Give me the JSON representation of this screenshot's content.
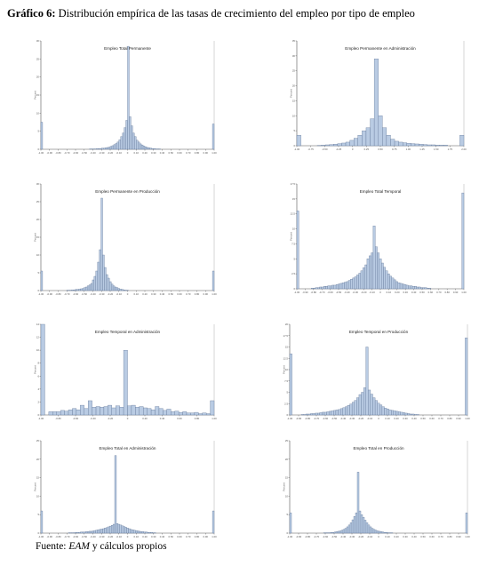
{
  "title": {
    "label": "Gráfico 6:",
    "text": "Distribución empírica de las tasas de crecimiento del empleo por tipo de empleo"
  },
  "source": {
    "prefix": "Fuente:",
    "italic": "EAM",
    "suffix": "y cálculos propios"
  },
  "colors": {
    "bar_fill": "#b9cbe3",
    "bar_stroke": "#5d7294",
    "axis": "#555555"
  },
  "chart_data": [
    {
      "type": "bar",
      "title": "Empleo Total Permanente",
      "ylabel": "Percent",
      "xlim": [
        -1,
        1
      ],
      "ylim": [
        0,
        30
      ],
      "yticks": [
        0,
        5,
        10,
        15,
        20,
        25,
        30
      ],
      "xticks": [
        "-1.00",
        "-0.90",
        "-0.80",
        "-0.70",
        "-0.60",
        "-0.50",
        "-0.40",
        "-0.30",
        "-0.20",
        "-0.10",
        "0",
        "0.10",
        "0.20",
        "0.30",
        "0.40",
        "0.50",
        "0.60",
        "0.70",
        "0.80",
        "0.90",
        "1.00"
      ],
      "values": [
        7.5,
        0,
        0,
        0,
        0,
        0,
        0,
        0,
        0,
        0,
        0,
        0,
        0,
        0,
        0,
        0,
        0,
        0,
        0,
        0,
        0,
        0,
        0,
        0,
        0,
        0,
        0,
        0,
        0.1,
        0.1,
        0.1,
        0.1,
        0.2,
        0.2,
        0.2,
        0.3,
        0.3,
        0.4,
        0.5,
        0.6,
        0.8,
        1,
        1.3,
        1.6,
        2,
        2.6,
        3.5,
        4.5,
        6,
        8,
        28.5,
        9,
        6.5,
        4.5,
        3.5,
        2.5,
        2,
        1.5,
        1.2,
        0.9,
        0.7,
        0.5,
        0.4,
        0.3,
        0.2,
        0.2,
        0.1,
        0.1,
        0.1,
        0,
        0,
        0,
        0,
        0,
        0,
        0,
        0,
        0,
        0,
        0,
        0,
        0,
        0,
        0,
        0,
        0,
        0,
        0,
        0,
        0,
        0,
        0,
        0,
        0,
        0,
        0,
        0,
        0,
        0,
        7
      ]
    },
    {
      "type": "bar",
      "title": "Empleo Permanente en Administración",
      "ylabel": "Percent",
      "xlim": [
        -1,
        1
      ],
      "ylim": [
        0,
        35
      ],
      "yticks": [
        0,
        5,
        10,
        15,
        20,
        25,
        30,
        35
      ],
      "xticks": [
        "-1.00",
        "-0.75",
        "-0.50",
        "-0.25",
        "0",
        "0.25",
        "0.50",
        "0.75",
        "1.00",
        "1.25",
        "1.50",
        "1.75",
        "2.00"
      ],
      "values": [
        3.5,
        0,
        0,
        0,
        0,
        0.1,
        0.2,
        0.3,
        0.4,
        0.5,
        0.7,
        0.9,
        1.2,
        1.8,
        2.5,
        3.5,
        5,
        6,
        9,
        29,
        10,
        6,
        3.5,
        2.2,
        1.5,
        1.2,
        1,
        0.8,
        0.7,
        0.6,
        0.5,
        0.4,
        0.3,
        0.3,
        0.2,
        0.2,
        0.2,
        0,
        0,
        0,
        3.5
      ]
    },
    {
      "type": "bar",
      "title": "Empleo Permanente en Producción",
      "ylabel": "Percent",
      "xlim": [
        -1,
        1
      ],
      "ylim": [
        0,
        30
      ],
      "yticks": [
        0,
        5,
        10,
        15,
        20,
        25,
        30
      ],
      "xticks": [
        "-1.00",
        "-0.90",
        "-0.80",
        "-0.70",
        "-0.60",
        "-0.50",
        "-0.40",
        "-0.30",
        "-0.20",
        "-0.10",
        "0",
        "0.10",
        "0.20",
        "0.30",
        "0.40",
        "0.50",
        "0.60",
        "0.70",
        "0.80",
        "0.90",
        "1.00"
      ],
      "values": [
        5.5,
        0,
        0,
        0,
        0,
        0,
        0,
        0,
        0,
        0,
        0,
        0,
        0,
        0,
        0,
        0.1,
        0.1,
        0.1,
        0.2,
        0.2,
        0.3,
        0.3,
        0.4,
        0.5,
        0.6,
        0.8,
        1,
        1.3,
        1.6,
        2,
        3,
        4,
        5.5,
        8,
        11.5,
        26,
        10,
        6.5,
        4.5,
        3.5,
        2.5,
        1.8,
        1.3,
        1,
        0.8,
        0.6,
        0.4,
        0.3,
        0.2,
        0.1,
        0.1,
        0,
        0,
        0,
        0,
        0,
        0,
        0,
        0,
        0,
        0,
        0,
        0,
        0,
        0,
        0,
        0,
        0,
        0,
        0,
        0,
        0,
        0,
        0,
        0,
        0,
        0,
        0,
        0,
        0,
        0,
        0,
        0,
        0,
        0,
        0,
        0,
        0,
        0,
        0,
        0,
        0,
        0,
        0,
        0,
        0,
        0,
        0,
        0,
        0,
        5.5
      ]
    },
    {
      "type": "bar",
      "title": "Empleo Total Temporal",
      "ylabel": "Percent",
      "xlim": [
        -1,
        1
      ],
      "ylim": [
        0,
        17.5
      ],
      "yticks": [
        0,
        2.5,
        5,
        7.5,
        10,
        12.5,
        15,
        17.5
      ],
      "xticks": [
        "-1.00",
        "-0.90",
        "-0.80",
        "-0.70",
        "-0.60",
        "-0.50",
        "-0.40",
        "-0.30",
        "-0.20",
        "-0.10",
        "0",
        "0.10",
        "0.20",
        "0.30",
        "0.40",
        "0.50",
        "0.60",
        "0.70",
        "0.80",
        "0.90",
        "1.00"
      ],
      "values": [
        13,
        0,
        0,
        0,
        0,
        0,
        0,
        0.1,
        0.1,
        0.2,
        0.2,
        0.3,
        0.3,
        0.4,
        0.4,
        0.5,
        0.5,
        0.6,
        0.6,
        0.7,
        0.8,
        0.9,
        1,
        1.1,
        1.2,
        1.4,
        1.6,
        1.8,
        2,
        2.3,
        2.6,
        3,
        3.5,
        4,
        5,
        5.5,
        6,
        10.5,
        7,
        6,
        5,
        4.3,
        3.6,
        3,
        2.5,
        2.1,
        1.8,
        1.5,
        1.2,
        1,
        0.9,
        0.8,
        0.7,
        0.6,
        0.5,
        0.5,
        0.4,
        0.4,
        0.3,
        0.3,
        0.2,
        0.2,
        0.2,
        0.1,
        0.1,
        0,
        0,
        0,
        0,
        0,
        0,
        0,
        0,
        0,
        0,
        0,
        0,
        0,
        0,
        0,
        16
      ]
    },
    {
      "type": "bar",
      "title": "Empleo Temporal en Administración",
      "ylabel": "Percent",
      "xlim": [
        -1,
        1
      ],
      "ylim": [
        0,
        14
      ],
      "yticks": [
        0,
        2,
        4,
        6,
        8,
        10,
        12,
        14
      ],
      "xticks": [
        "-1.00",
        "-0.80",
        "-0.60",
        "-0.40",
        "-0.20",
        "0",
        "0.20",
        "0.40",
        "0.60",
        "0.80",
        "1.00"
      ],
      "values": [
        14,
        0,
        0.5,
        0.5,
        0.5,
        0.7,
        0.6,
        0.8,
        1,
        0.8,
        1.5,
        1,
        2.2,
        1.2,
        1.3,
        1.2,
        1.3,
        1.5,
        1.1,
        1.4,
        1.2,
        10,
        1.4,
        1.5,
        1.2,
        1.3,
        1.1,
        1,
        0.8,
        1.3,
        1,
        0.7,
        0.9,
        0.5,
        0.6,
        0.4,
        0.5,
        0.3,
        0.3,
        0.4,
        0.2,
        0.3,
        0.2,
        2.2
      ]
    },
    {
      "type": "bar",
      "title": "Empleo Temporal en Producción",
      "ylabel": "Percent",
      "xlim": [
        -1,
        1
      ],
      "ylim": [
        0,
        20
      ],
      "yticks": [
        0,
        2.5,
        5,
        7.5,
        10,
        12.5,
        15,
        17.5,
        20
      ],
      "xticks": [
        "-1.00",
        "-0.90",
        "-0.80",
        "-0.70",
        "-0.60",
        "-0.50",
        "-0.40",
        "-0.30",
        "-0.20",
        "-0.10",
        "0",
        "0.10",
        "0.20",
        "0.30",
        "0.40",
        "0.50",
        "0.60",
        "0.70",
        "0.80",
        "0.90",
        "1.00"
      ],
      "values": [
        13.5,
        0,
        0,
        0,
        0,
        0.1,
        0.1,
        0.2,
        0.2,
        0.3,
        0.3,
        0.4,
        0.4,
        0.5,
        0.6,
        0.6,
        0.7,
        0.8,
        0.9,
        1,
        1.1,
        1.2,
        1.4,
        1.6,
        1.8,
        2.1,
        2.4,
        2.8,
        3.2,
        3.8,
        4.5,
        5,
        6,
        15,
        5.5,
        4.6,
        3.8,
        3.2,
        2.6,
        2.2,
        1.8,
        1.5,
        1.3,
        1.1,
        1,
        0.9,
        0.8,
        0.7,
        0.6,
        0.5,
        0.4,
        0.3,
        0.2,
        0.2,
        0.1,
        0.1,
        0,
        0,
        0,
        0,
        0,
        0,
        0,
        0,
        0,
        0,
        0,
        0,
        0,
        0,
        0,
        0,
        0,
        0,
        0,
        0,
        17
      ]
    },
    {
      "type": "bar",
      "title": "Empleo Total en Administración",
      "ylabel": "Percent",
      "xlim": [
        -1,
        1
      ],
      "ylim": [
        0,
        25
      ],
      "yticks": [
        0,
        5,
        10,
        15,
        20,
        25
      ],
      "xticks": [
        "-1.00",
        "-0.90",
        "-0.80",
        "-0.70",
        "-0.60",
        "-0.50",
        "-0.40",
        "-0.30",
        "-0.20",
        "-0.10",
        "0",
        "0.10",
        "0.20",
        "0.30",
        "0.40",
        "0.50",
        "0.60",
        "0.70",
        "0.80",
        "0.90",
        "1.00"
      ],
      "values": [
        6,
        0,
        0,
        0,
        0,
        0,
        0,
        0,
        0,
        0,
        0,
        0,
        0,
        0,
        0,
        0,
        0.1,
        0.1,
        0.1,
        0.1,
        0.2,
        0.2,
        0.2,
        0.3,
        0.3,
        0.3,
        0.4,
        0.4,
        0.5,
        0.5,
        0.6,
        0.7,
        0.8,
        0.9,
        1,
        1.1,
        1.2,
        1.4,
        1.5,
        1.7,
        1.9,
        2.1,
        2.4,
        21,
        2.6,
        2.4,
        2.2,
        2,
        1.8,
        1.6,
        1.4,
        1.2,
        1,
        0.9,
        0.8,
        0.7,
        0.6,
        0.5,
        0.4,
        0.4,
        0.3,
        0.3,
        0.2,
        0.2,
        0.2,
        0.1,
        0.1,
        0,
        0,
        0,
        0,
        0,
        0,
        0,
        0,
        0,
        0,
        0,
        0,
        0,
        0,
        0,
        0,
        0,
        0,
        0,
        0,
        0,
        0,
        0,
        0,
        0,
        0,
        0,
        0,
        0,
        0,
        0,
        0,
        0,
        6
      ]
    },
    {
      "type": "bar",
      "title": "Empleo Total en Producción",
      "ylabel": "Percent",
      "xlim": [
        -1,
        1
      ],
      "ylim": [
        0,
        25
      ],
      "yticks": [
        0,
        5,
        10,
        15,
        20,
        25
      ],
      "xticks": [
        "-1.00",
        "-0.90",
        "-0.80",
        "-0.70",
        "-0.60",
        "-0.50",
        "-0.40",
        "-0.30",
        "-0.20",
        "-0.10",
        "0",
        "0.10",
        "0.20",
        "0.30",
        "0.40",
        "0.50",
        "0.60",
        "0.70",
        "0.80",
        "0.90",
        "1.00"
      ],
      "values": [
        5.5,
        0,
        0,
        0,
        0,
        0,
        0,
        0,
        0,
        0,
        0,
        0,
        0,
        0,
        0,
        0,
        0,
        0,
        0,
        0.1,
        0.1,
        0.1,
        0.1,
        0.2,
        0.2,
        0.3,
        0.4,
        0.5,
        0.6,
        0.8,
        1,
        1.3,
        1.7,
        2.2,
        2.8,
        3.6,
        4.5,
        5.5,
        16.5,
        6,
        5,
        4.3,
        3.5,
        2.8,
        2.2,
        1.7,
        1.3,
        1,
        0.8,
        0.6,
        0.5,
        0.4,
        0.3,
        0.2,
        0.2,
        0.1,
        0.1,
        0.1,
        0,
        0,
        0,
        0,
        0,
        0,
        0,
        0,
        0,
        0,
        0,
        0,
        0,
        0,
        0,
        0,
        0,
        0,
        0,
        0,
        0,
        0,
        0,
        0,
        0,
        0,
        0,
        0,
        0,
        0,
        0,
        0,
        0,
        0,
        0,
        0,
        0,
        0,
        0,
        0,
        0,
        5.5
      ]
    }
  ]
}
